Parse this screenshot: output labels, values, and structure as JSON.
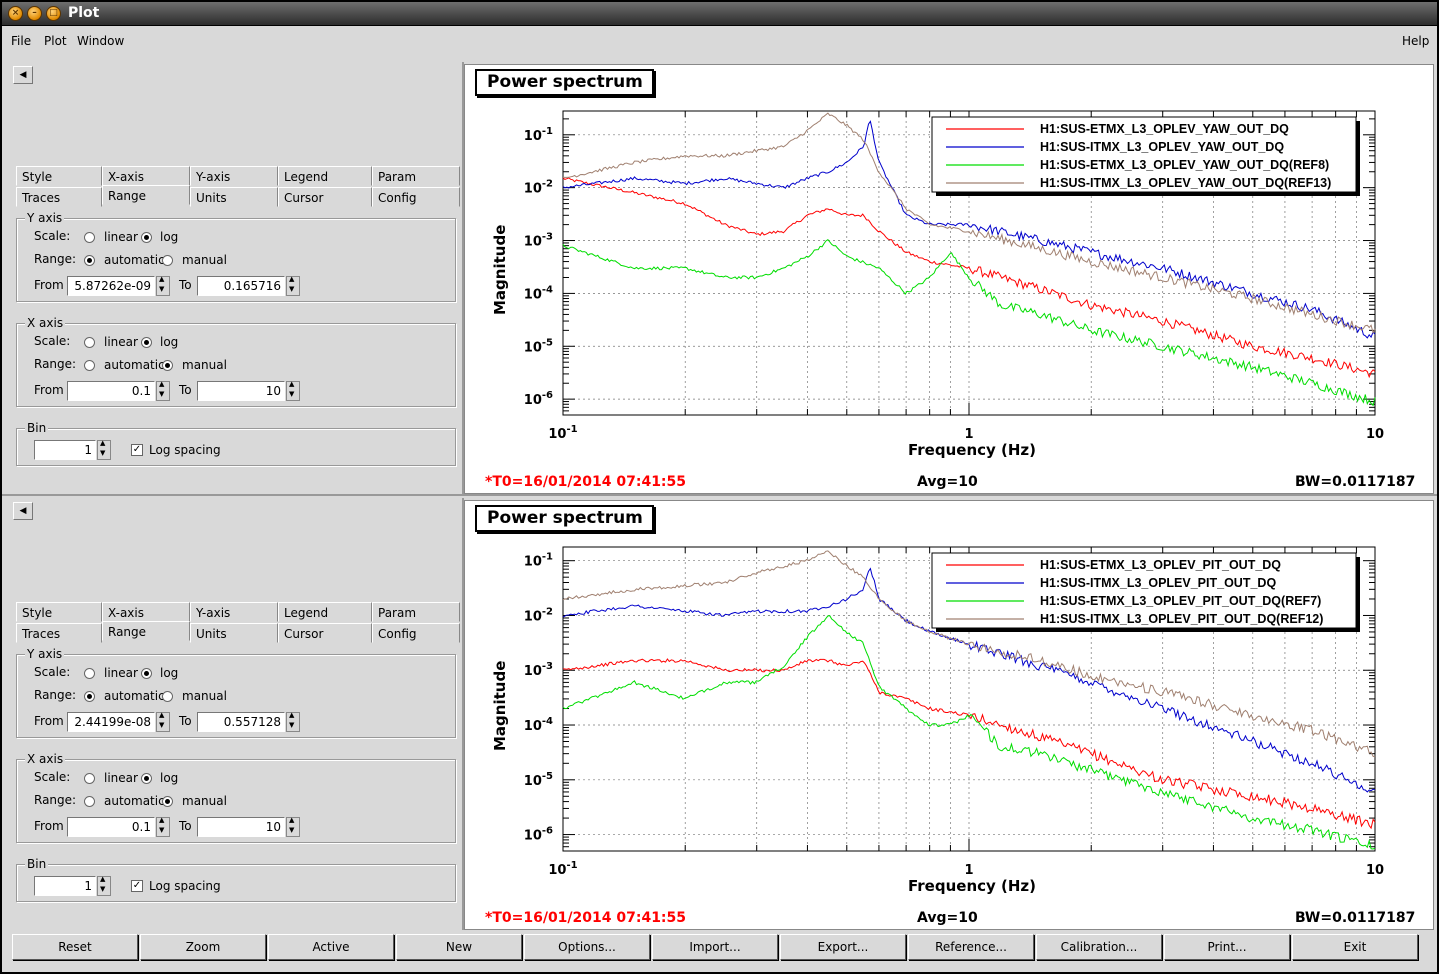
{
  "window": {
    "title": "Plot"
  },
  "menubar": {
    "file": "File",
    "plot": "Plot",
    "window": "Window",
    "help": "Help"
  },
  "colors": {
    "red": "#ff0000",
    "blue": "#0000cc",
    "green": "#00dd00",
    "brown": "#a08070"
  },
  "panels": [
    {
      "tabs_row1": [
        "Style",
        "X-axis",
        "Y-axis",
        "Legend",
        "Param"
      ],
      "tabs_row2": [
        "Traces",
        "Range",
        "Units",
        "Cursor",
        "Config"
      ],
      "active_tab": "Range",
      "yaxis": {
        "title": "Y axis",
        "scale_label": "Scale:",
        "linear": "linear",
        "log": "log",
        "scale": "log",
        "range_label": "Range:",
        "automatic": "automatic",
        "manual": "manual",
        "range": "automatic",
        "from_label": "From",
        "from": "5.87262e-09",
        "to_label": "To",
        "to": "0.165716"
      },
      "xaxis": {
        "title": "X axis",
        "scale_label": "Scale:",
        "linear": "linear",
        "log": "log",
        "scale": "log",
        "range_label": "Range:",
        "automatic": "automatic",
        "manual": "manual",
        "range": "manual",
        "from_label": "From",
        "from": "0.1",
        "to_label": "To",
        "to": "10"
      },
      "bin": {
        "title": "Bin",
        "value": "1",
        "log_spacing": "Log spacing",
        "checked": true
      }
    },
    {
      "tabs_row1": [
        "Style",
        "X-axis",
        "Y-axis",
        "Legend",
        "Param"
      ],
      "tabs_row2": [
        "Traces",
        "Range",
        "Units",
        "Cursor",
        "Config"
      ],
      "active_tab": "Range",
      "yaxis": {
        "title": "Y axis",
        "scale_label": "Scale:",
        "linear": "linear",
        "log": "log",
        "scale": "log",
        "range_label": "Range:",
        "automatic": "automatic",
        "manual": "manual",
        "range": "automatic",
        "from_label": "From",
        "from": "2.44199e-08",
        "to_label": "To",
        "to": "0.557128"
      },
      "xaxis": {
        "title": "X axis",
        "scale_label": "Scale:",
        "linear": "linear",
        "log": "log",
        "scale": "log",
        "range_label": "Range:",
        "automatic": "automatic",
        "manual": "manual",
        "range": "manual",
        "from_label": "From",
        "from": "0.1",
        "to_label": "To",
        "to": "10"
      },
      "bin": {
        "title": "Bin",
        "value": "1",
        "log_spacing": "Log spacing",
        "checked": true
      }
    }
  ],
  "plots": [
    {
      "title": "Power spectrum",
      "xlabel": "Frequency (Hz)",
      "ylabel": "Magnitude",
      "t0": "*T0=16/01/2014 07:41:55",
      "avg": "Avg=10",
      "bw": "BW=0.0117187",
      "legend": [
        {
          "name": "H1:SUS-ETMX_L3_OPLEV_YAW_OUT_DQ",
          "color": "#ff0000"
        },
        {
          "name": "H1:SUS-ITMX_L3_OPLEV_YAW_OUT_DQ",
          "color": "#0000cc"
        },
        {
          "name": "H1:SUS-ETMX_L3_OPLEV_YAW_OUT_DQ(REF8)",
          "color": "#00dd00"
        },
        {
          "name": "H1:SUS-ITMX_L3_OPLEV_YAW_OUT_DQ(REF13)",
          "color": "#a08070"
        }
      ]
    },
    {
      "title": "Power spectrum",
      "xlabel": "Frequency (Hz)",
      "ylabel": "Magnitude",
      "t0": "*T0=16/01/2014 07:41:55",
      "avg": "Avg=10",
      "bw": "BW=0.0117187",
      "legend": [
        {
          "name": "H1:SUS-ETMX_L3_OPLEV_PIT_OUT_DQ",
          "color": "#ff0000"
        },
        {
          "name": "H1:SUS-ITMX_L3_OPLEV_PIT_OUT_DQ",
          "color": "#0000cc"
        },
        {
          "name": "H1:SUS-ETMX_L3_OPLEV_PIT_OUT_DQ(REF7)",
          "color": "#00dd00"
        },
        {
          "name": "H1:SUS-ITMX_L3_OPLEV_PIT_OUT_DQ(REF12)",
          "color": "#a08070"
        }
      ]
    }
  ],
  "chart_data": [
    {
      "type": "line",
      "title": "Power spectrum",
      "xlabel": "Frequency (Hz)",
      "ylabel": "Magnitude",
      "xscale": "log",
      "yscale": "log",
      "xlim": [
        0.1,
        10
      ],
      "ylim_decades": [
        -6.3,
        -0.55
      ],
      "xticks": [
        "10-1",
        "1",
        "10"
      ],
      "yticks": [
        "10-6",
        "10-5",
        "10-4",
        "10-3",
        "10-2",
        "10-1"
      ],
      "grid": true,
      "legend_position": "top-right",
      "series": [
        {
          "name": "H1:SUS-ETMX_L3_OPLEV_YAW_OUT_DQ",
          "x": [
            0.1,
            0.15,
            0.2,
            0.25,
            0.3,
            0.35,
            0.4,
            0.45,
            0.5,
            0.55,
            0.6,
            0.7,
            0.8,
            1,
            1.5,
            2,
            3,
            5,
            7,
            10
          ],
          "y": [
            0.015,
            0.008,
            0.005,
            0.002,
            0.0013,
            0.0015,
            0.003,
            0.004,
            0.003,
            0.003,
            0.0015,
            0.0006,
            0.0004,
            0.0003,
            0.00012,
            6e-05,
            3e-05,
            1e-05,
            6e-06,
            3e-06
          ]
        },
        {
          "name": "H1:SUS-ITMX_L3_OPLEV_YAW_OUT_DQ",
          "x": [
            0.1,
            0.15,
            0.2,
            0.25,
            0.3,
            0.35,
            0.4,
            0.45,
            0.5,
            0.55,
            0.57,
            0.6,
            0.7,
            0.8,
            1,
            1.5,
            2,
            3,
            5,
            7,
            10
          ],
          "y": [
            0.01,
            0.015,
            0.012,
            0.015,
            0.012,
            0.01,
            0.015,
            0.02,
            0.03,
            0.06,
            0.2,
            0.03,
            0.003,
            0.002,
            0.002,
            0.001,
            0.0006,
            0.0003,
            0.0001,
            5e-05,
            1.5e-05
          ]
        },
        {
          "name": "H1:SUS-ETMX_L3_OPLEV_YAW_OUT_DQ(REF8)",
          "x": [
            0.1,
            0.15,
            0.2,
            0.25,
            0.3,
            0.35,
            0.4,
            0.45,
            0.5,
            0.6,
            0.7,
            0.8,
            0.9,
            1,
            1.2,
            1.5,
            2,
            3,
            5,
            7,
            10
          ],
          "y": [
            0.0008,
            0.0003,
            0.0003,
            0.0002,
            0.0002,
            0.0003,
            0.0005,
            0.001,
            0.0005,
            0.0003,
            0.0001,
            0.0002,
            0.0006,
            0.0002,
            6e-05,
            4e-05,
            2e-05,
            1e-05,
            4e-06,
            2e-06,
            9e-07
          ]
        },
        {
          "name": "H1:SUS-ITMX_L3_OPLEV_YAW_OUT_DQ(REF13)",
          "x": [
            0.1,
            0.15,
            0.2,
            0.25,
            0.3,
            0.35,
            0.4,
            0.45,
            0.5,
            0.55,
            0.6,
            0.7,
            0.8,
            1,
            1.5,
            2,
            3,
            5,
            7,
            10
          ],
          "y": [
            0.015,
            0.03,
            0.04,
            0.04,
            0.05,
            0.06,
            0.12,
            0.25,
            0.15,
            0.08,
            0.02,
            0.004,
            0.002,
            0.0015,
            0.0007,
            0.0004,
            0.0002,
            8e-05,
            4e-05,
            2e-05
          ]
        }
      ]
    },
    {
      "type": "line",
      "title": "Power spectrum",
      "xlabel": "Frequency (Hz)",
      "ylabel": "Magnitude",
      "xscale": "log",
      "yscale": "log",
      "xlim": [
        0.1,
        10
      ],
      "ylim_decades": [
        -6.3,
        -0.75
      ],
      "xticks": [
        "10-1",
        "1",
        "10"
      ],
      "yticks": [
        "10-6",
        "10-5",
        "10-4",
        "10-3",
        "10-2",
        "10-1"
      ],
      "grid": true,
      "legend_position": "top-right",
      "series": [
        {
          "name": "H1:SUS-ETMX_L3_OPLEV_PIT_OUT_DQ",
          "x": [
            0.1,
            0.15,
            0.2,
            0.25,
            0.3,
            0.35,
            0.4,
            0.45,
            0.5,
            0.55,
            0.6,
            0.7,
            0.8,
            1,
            1.5,
            2,
            3,
            5,
            7,
            10
          ],
          "y": [
            0.001,
            0.0015,
            0.0015,
            0.001,
            0.001,
            0.001,
            0.0015,
            0.0015,
            0.0012,
            0.0015,
            0.0004,
            0.0003,
            0.0002,
            0.00015,
            6e-05,
            3e-05,
            1e-05,
            5e-06,
            3e-06,
            1.5e-06
          ]
        },
        {
          "name": "H1:SUS-ITMX_L3_OPLEV_PIT_OUT_DQ",
          "x": [
            0.1,
            0.15,
            0.2,
            0.25,
            0.3,
            0.35,
            0.4,
            0.45,
            0.5,
            0.55,
            0.57,
            0.6,
            0.7,
            0.8,
            1,
            1.5,
            2,
            3,
            5,
            7,
            10
          ],
          "y": [
            0.01,
            0.015,
            0.012,
            0.01,
            0.012,
            0.012,
            0.012,
            0.015,
            0.02,
            0.03,
            0.08,
            0.02,
            0.008,
            0.005,
            0.003,
            0.0012,
            0.0006,
            0.0002,
            5e-05,
            2e-05,
            6e-06
          ]
        },
        {
          "name": "H1:SUS-ETMX_L3_OPLEV_PIT_OUT_DQ(REF7)",
          "x": [
            0.1,
            0.15,
            0.2,
            0.25,
            0.3,
            0.35,
            0.4,
            0.45,
            0.5,
            0.55,
            0.6,
            0.7,
            0.8,
            0.9,
            1,
            1.2,
            1.5,
            2,
            3,
            5,
            7,
            10
          ],
          "y": [
            0.0002,
            0.0006,
            0.0003,
            0.0006,
            0.0006,
            0.0012,
            0.004,
            0.01,
            0.005,
            0.003,
            0.0005,
            0.0002,
            0.0001,
            0.0001,
            0.00015,
            4e-05,
            3e-05,
            1.5e-05,
            6e-06,
            2e-06,
            1.2e-06,
            6e-07
          ]
        },
        {
          "name": "H1:SUS-ITMX_L3_OPLEV_PIT_OUT_DQ(REF12)",
          "x": [
            0.1,
            0.15,
            0.2,
            0.25,
            0.3,
            0.35,
            0.4,
            0.45,
            0.5,
            0.55,
            0.6,
            0.7,
            0.8,
            1,
            1.5,
            2,
            3,
            5,
            7,
            10
          ],
          "y": [
            0.02,
            0.03,
            0.035,
            0.04,
            0.06,
            0.08,
            0.1,
            0.15,
            0.08,
            0.05,
            0.02,
            0.008,
            0.005,
            0.003,
            0.0015,
            0.0008,
            0.0004,
            0.00015,
            8e-05,
            3e-05
          ]
        }
      ]
    }
  ],
  "bottom_buttons": [
    "Reset",
    "Zoom",
    "Active",
    "New",
    "Options...",
    "Import...",
    "Export...",
    "Reference...",
    "Calibration...",
    "Print...",
    "Exit"
  ]
}
